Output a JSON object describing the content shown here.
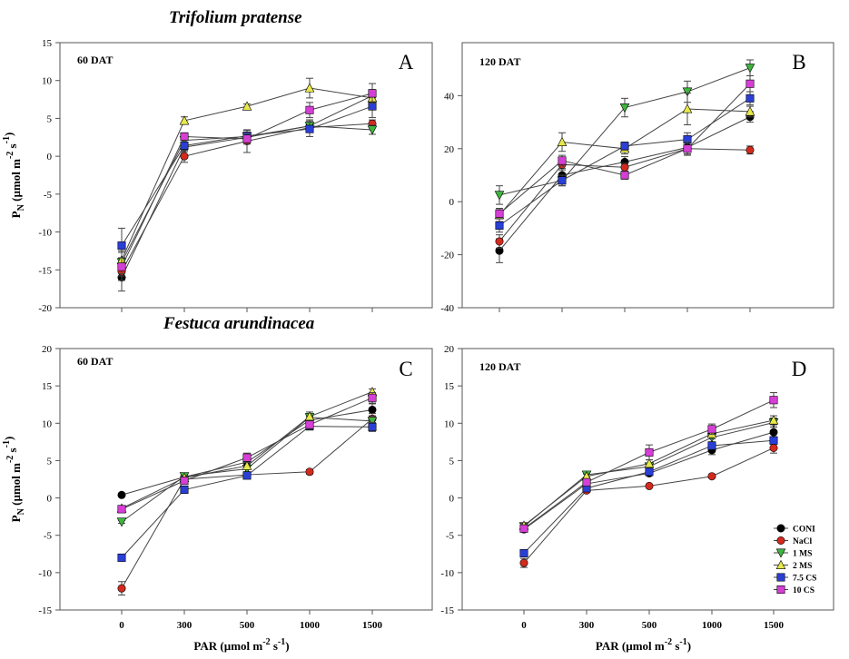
{
  "figure": {
    "species_top": "Trifolium pratense",
    "species_bottom": "Festuca arundinacea"
  },
  "legend": [
    {
      "key": "CONI",
      "label": "CONI",
      "color": "#000000",
      "marker": "circle"
    },
    {
      "key": "NaCl",
      "label": "NaCl",
      "color": "#d42a1e",
      "marker": "circle"
    },
    {
      "key": "1MS",
      "label": "1 MS",
      "color": "#3fb53f",
      "marker": "triangle-down"
    },
    {
      "key": "2MS",
      "label": "2 MS",
      "color": "#e8e84a",
      "marker": "triangle-up"
    },
    {
      "key": "7.5CS",
      "label": "7.5 CS",
      "color": "#2a3fd6",
      "marker": "square"
    },
    {
      "key": "10CS",
      "label": "10 CS",
      "color": "#d63fd6",
      "marker": "square"
    }
  ],
  "chart_data": [
    {
      "type": "line",
      "panel": "A",
      "annotation": "60 DAT",
      "ylabel": "PN (µmol m-2 s-1)",
      "xlabel": "",
      "x": [
        0,
        300,
        500,
        1000,
        1500
      ],
      "xticklabels": [],
      "ylim": [
        -20,
        15
      ],
      "yticks": [
        -20,
        -15,
        -10,
        -5,
        0,
        5,
        10,
        15
      ],
      "series": [
        {
          "name": "CONI",
          "values": [
            -16.0,
            1.2,
            2.5,
            4.0,
            8.0
          ],
          "err": [
            1.8,
            0.6,
            0.5,
            0.8,
            0.8
          ]
        },
        {
          "name": "NaCl",
          "values": [
            -15.2,
            0.0,
            2.0,
            3.8,
            4.3
          ],
          "err": [
            1.2,
            0.8,
            1.5,
            0.6,
            0.5
          ]
        },
        {
          "name": "1 MS",
          "values": [
            -14.0,
            2.1,
            2.6,
            4.0,
            3.5
          ],
          "err": [
            1.5,
            0.5,
            0.4,
            0.8,
            0.6
          ]
        },
        {
          "name": "2 MS",
          "values": [
            -13.7,
            4.7,
            6.6,
            9.0,
            7.7
          ],
          "err": [
            1.0,
            0.5,
            0.3,
            1.3,
            0.8
          ]
        },
        {
          "name": "7.5 CS",
          "values": [
            -11.8,
            1.4,
            2.7,
            3.6,
            6.6
          ],
          "err": [
            2.3,
            0.8,
            0.7,
            1.0,
            1.5
          ]
        },
        {
          "name": "10 CS",
          "values": [
            -14.6,
            2.6,
            2.3,
            6.1,
            8.3
          ],
          "err": [
            1.2,
            0.5,
            0.7,
            1.0,
            1.3
          ]
        }
      ]
    },
    {
      "type": "line",
      "panel": "B",
      "annotation": "120 DAT",
      "ylabel": "",
      "xlabel": "",
      "x": [
        0,
        300,
        500,
        1000,
        1500
      ],
      "xticklabels": [],
      "ylim": [
        -40,
        60
      ],
      "yticks": [
        -40,
        -20,
        0,
        20,
        40
      ],
      "series": [
        {
          "name": "CONI",
          "values": [
            -18.5,
            10.0,
            15.0,
            20.5,
            32.0
          ],
          "err": [
            4.5,
            2.5,
            2.0,
            2.5,
            2.0
          ]
        },
        {
          "name": "NaCl",
          "values": [
            -15.0,
            14.0,
            13.0,
            20.0,
            19.5
          ],
          "err": [
            2.5,
            2.0,
            1.5,
            2.0,
            1.5
          ]
        },
        {
          "name": "1 MS",
          "values": [
            2.5,
            8.0,
            35.5,
            41.5,
            50.5
          ],
          "err": [
            3.5,
            2.0,
            3.5,
            4.0,
            3.0
          ]
        },
        {
          "name": "2 MS",
          "values": [
            -5.0,
            22.5,
            20.0,
            35.0,
            34.0
          ],
          "err": [
            2.5,
            3.5,
            2.0,
            6.0,
            2.0
          ]
        },
        {
          "name": "7.5 CS",
          "values": [
            -9.0,
            8.0,
            21.0,
            23.5,
            39.0
          ],
          "err": [
            2.5,
            2.0,
            1.5,
            2.5,
            2.5
          ]
        },
        {
          "name": "10 CS",
          "values": [
            -4.5,
            15.5,
            10.0,
            20.0,
            44.5
          ],
          "err": [
            1.5,
            2.0,
            1.5,
            2.5,
            3.0
          ]
        }
      ]
    },
    {
      "type": "line",
      "panel": "C",
      "annotation": "60 DAT",
      "ylabel": "PN (µmol m-2 s-1)",
      "xlabel": "PAR (µmol m-2 s-1)",
      "x": [
        0,
        300,
        500,
        1000,
        1500
      ],
      "xticklabels": [
        "0",
        "300",
        "500",
        "1000",
        "1500"
      ],
      "ylim": [
        -15,
        20
      ],
      "yticks": [
        -15,
        -10,
        -5,
        0,
        5,
        10,
        15,
        20
      ],
      "series": [
        {
          "name": "CONI",
          "values": [
            0.4,
            2.8,
            4.8,
            10.4,
            11.8
          ],
          "err": [
            0.2,
            0.3,
            0.5,
            0.5,
            0.8
          ]
        },
        {
          "name": "NaCl",
          "values": [
            -12.1,
            2.5,
            3.1,
            3.5,
            10.6
          ],
          "err": [
            0.9,
            0.4,
            0.3,
            0.3,
            0.7
          ]
        },
        {
          "name": "1 MS",
          "values": [
            -3.2,
            2.9,
            3.9,
            10.8,
            10.3
          ],
          "err": [
            0.2,
            0.3,
            0.4,
            0.5,
            0.6
          ]
        },
        {
          "name": "2 MS",
          "values": [
            -1.4,
            2.7,
            4.3,
            10.9,
            14.2
          ],
          "err": [
            0.2,
            0.3,
            0.4,
            0.6,
            0.4
          ]
        },
        {
          "name": "7.5 CS",
          "values": [
            -8.0,
            1.1,
            3.0,
            9.6,
            9.5
          ],
          "err": [
            0.3,
            0.3,
            0.3,
            0.5,
            0.6
          ]
        },
        {
          "name": "10 CS",
          "values": [
            -1.5,
            2.3,
            5.4,
            9.8,
            13.4
          ],
          "err": [
            0.3,
            0.3,
            0.6,
            0.6,
            0.7
          ]
        }
      ]
    },
    {
      "type": "line",
      "panel": "D",
      "annotation": "120 DAT",
      "ylabel": "",
      "xlabel": "PAR (µmol m-2 s-1)",
      "x": [
        0,
        300,
        500,
        1000,
        1500
      ],
      "xticklabels": [
        "0",
        "300",
        "500",
        "1000",
        "1500"
      ],
      "ylim": [
        -15,
        20
      ],
      "yticks": [
        -15,
        -10,
        -5,
        0,
        5,
        10,
        15,
        20
      ],
      "series": [
        {
          "name": "CONI",
          "values": [
            -4.2,
            1.9,
            3.3,
            6.4,
            8.8
          ],
          "err": [
            0.3,
            0.3,
            0.3,
            0.6,
            0.7
          ]
        },
        {
          "name": "NaCl",
          "values": [
            -8.7,
            1.0,
            1.6,
            2.9,
            6.7
          ],
          "err": [
            0.6,
            0.2,
            0.2,
            0.2,
            0.7
          ]
        },
        {
          "name": "1 MS",
          "values": [
            -3.8,
            3.1,
            4.2,
            8.1,
            10.1
          ],
          "err": [
            0.3,
            0.3,
            0.4,
            0.6,
            0.6
          ]
        },
        {
          "name": "2 MS",
          "values": [
            -3.7,
            2.9,
            4.6,
            8.6,
            10.4
          ],
          "err": [
            0.3,
            0.3,
            0.5,
            0.7,
            0.6
          ]
        },
        {
          "name": "7.5 CS",
          "values": [
            -7.4,
            1.3,
            3.5,
            7.0,
            7.7
          ],
          "err": [
            0.4,
            0.2,
            0.3,
            0.5,
            0.5
          ]
        },
        {
          "name": "10 CS",
          "values": [
            -4.1,
            2.1,
            6.1,
            9.2,
            13.1
          ],
          "err": [
            0.3,
            0.3,
            1.0,
            0.7,
            1.0
          ]
        }
      ]
    }
  ]
}
